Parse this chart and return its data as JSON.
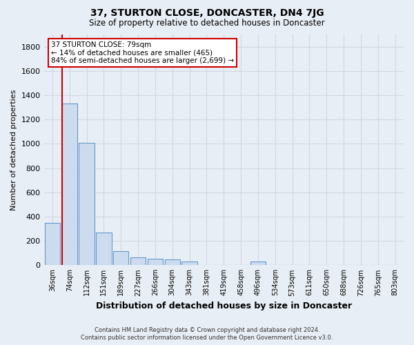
{
  "title": "37, STURTON CLOSE, DONCASTER, DN4 7JG",
  "subtitle": "Size of property relative to detached houses in Doncaster",
  "xlabel": "Distribution of detached houses by size in Doncaster",
  "ylabel": "Number of detached properties",
  "footer_line1": "Contains HM Land Registry data © Crown copyright and database right 2024.",
  "footer_line2": "Contains public sector information licensed under the Open Government Licence v3.0.",
  "bar_labels": [
    "36sqm",
    "74sqm",
    "112sqm",
    "151sqm",
    "189sqm",
    "227sqm",
    "266sqm",
    "304sqm",
    "343sqm",
    "381sqm",
    "419sqm",
    "458sqm",
    "496sqm",
    "534sqm",
    "573sqm",
    "611sqm",
    "650sqm",
    "688sqm",
    "726sqm",
    "765sqm",
    "803sqm"
  ],
  "bar_values": [
    350,
    1330,
    1010,
    270,
    115,
    65,
    55,
    50,
    30,
    0,
    0,
    0,
    30,
    0,
    0,
    0,
    0,
    0,
    0,
    0,
    0
  ],
  "bar_color": "#ccdcee",
  "bar_edge_color": "#6699cc",
  "ylim": [
    0,
    1900
  ],
  "yticks": [
    0,
    200,
    400,
    600,
    800,
    1000,
    1200,
    1400,
    1600,
    1800
  ],
  "property_line_color": "#cc0000",
  "annotation_title": "37 STURTON CLOSE: 79sqm",
  "annotation_line1": "← 14% of detached houses are smaller (465)",
  "annotation_line2": "84% of semi-detached houses are larger (2,699) →",
  "annotation_box_color": "#ffffff",
  "annotation_box_edge": "#cc0000",
  "grid_color": "#d0d8e4",
  "background_color": "#e8eef5"
}
